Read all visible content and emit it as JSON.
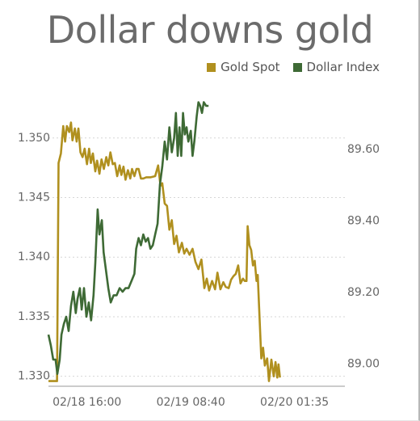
{
  "chart_data": {
    "type": "line",
    "title": "Dollar downs gold",
    "x_ticks": [
      "02/18 16:00",
      "02/19 08:40",
      "02/20 01:35"
    ],
    "y_left": {
      "ticks": [
        "1.330",
        "1.335",
        "1.340",
        "1.345",
        "1.350"
      ],
      "lim": [
        1.3293,
        1.3548
      ]
    },
    "y_right": {
      "ticks": [
        "89.00",
        "89.20",
        "89.40",
        "89.60"
      ],
      "lim": [
        88.94,
        89.79
      ]
    },
    "legend_position": "top-right",
    "grid": "horizontal dashed",
    "series": [
      {
        "name": "Gold Spot",
        "axis": "left",
        "color": "#b0901f",
        "values": [
          [
            0.0,
            1.3296
          ],
          [
            0.029,
            1.3296
          ],
          [
            0.034,
            1.3479
          ],
          [
            0.042,
            1.3487
          ],
          [
            0.05,
            1.351
          ],
          [
            0.056,
            1.3497
          ],
          [
            0.062,
            1.351
          ],
          [
            0.07,
            1.3505
          ],
          [
            0.076,
            1.3513
          ],
          [
            0.081,
            1.3498
          ],
          [
            0.089,
            1.3508
          ],
          [
            0.095,
            1.3497
          ],
          [
            0.101,
            1.3508
          ],
          [
            0.108,
            1.3488
          ],
          [
            0.115,
            1.3484
          ],
          [
            0.122,
            1.3491
          ],
          [
            0.13,
            1.3478
          ],
          [
            0.137,
            1.3491
          ],
          [
            0.143,
            1.3479
          ],
          [
            0.15,
            1.3487
          ],
          [
            0.158,
            1.3472
          ],
          [
            0.164,
            1.3481
          ],
          [
            0.172,
            1.347
          ],
          [
            0.179,
            1.3482
          ],
          [
            0.187,
            1.3474
          ],
          [
            0.195,
            1.3484
          ],
          [
            0.202,
            1.3477
          ],
          [
            0.209,
            1.3488
          ],
          [
            0.217,
            1.3478
          ],
          [
            0.224,
            1.3479
          ],
          [
            0.232,
            1.3468
          ],
          [
            0.24,
            1.3477
          ],
          [
            0.246,
            1.3469
          ],
          [
            0.253,
            1.3476
          ],
          [
            0.26,
            1.3465
          ],
          [
            0.268,
            1.3473
          ],
          [
            0.276,
            1.3466
          ],
          [
            0.282,
            1.3474
          ],
          [
            0.29,
            1.3468
          ],
          [
            0.297,
            1.3474
          ],
          [
            0.304,
            1.3474
          ],
          [
            0.312,
            1.3466
          ],
          [
            0.32,
            1.3466
          ],
          [
            0.33,
            1.3467
          ],
          [
            0.345,
            1.3467
          ],
          [
            0.36,
            1.3468
          ],
          [
            0.37,
            1.3477
          ],
          [
            0.378,
            1.346
          ],
          [
            0.384,
            1.3462
          ],
          [
            0.392,
            1.3445
          ],
          [
            0.4,
            1.3443
          ],
          [
            0.408,
            1.3423
          ],
          [
            0.416,
            1.3431
          ],
          [
            0.424,
            1.3411
          ],
          [
            0.432,
            1.3418
          ],
          [
            0.44,
            1.3404
          ],
          [
            0.45,
            1.3412
          ],
          [
            0.458,
            1.3403
          ],
          [
            0.466,
            1.3407
          ],
          [
            0.476,
            1.3402
          ],
          [
            0.486,
            1.3407
          ],
          [
            0.496,
            1.3396
          ],
          [
            0.506,
            1.339
          ],
          [
            0.516,
            1.3398
          ],
          [
            0.526,
            1.3374
          ],
          [
            0.534,
            1.3382
          ],
          [
            0.542,
            1.3372
          ],
          [
            0.552,
            1.338
          ],
          [
            0.562,
            1.3373
          ],
          [
            0.57,
            1.3387
          ],
          [
            0.58,
            1.3373
          ],
          [
            0.59,
            1.3379
          ],
          [
            0.598,
            1.3375
          ],
          [
            0.608,
            1.3374
          ],
          [
            0.616,
            1.3381
          ],
          [
            0.624,
            1.3384
          ],
          [
            0.632,
            1.3386
          ],
          [
            0.64,
            1.3393
          ],
          [
            0.648,
            1.3378
          ],
          [
            0.656,
            1.3382
          ],
          [
            0.662,
            1.338
          ],
          [
            0.668,
            1.338
          ],
          [
            0.672,
            1.3426
          ],
          [
            0.678,
            1.341
          ],
          [
            0.684,
            1.3406
          ],
          [
            0.69,
            1.3393
          ],
          [
            0.696,
            1.3397
          ],
          [
            0.702,
            1.338
          ],
          [
            0.706,
            1.3385
          ],
          [
            0.712,
            1.335
          ],
          [
            0.718,
            1.3315
          ],
          [
            0.724,
            1.3324
          ],
          [
            0.73,
            1.3309
          ],
          [
            0.738,
            1.3315
          ],
          [
            0.744,
            1.3296
          ],
          [
            0.752,
            1.3314
          ],
          [
            0.76,
            1.33
          ],
          [
            0.766,
            1.3312
          ],
          [
            0.772,
            1.3299
          ],
          [
            0.776,
            1.331
          ],
          [
            0.781,
            1.3299
          ]
        ]
      },
      {
        "name": "Dollar Index",
        "axis": "right",
        "color": "#3e6a35",
        "values": [
          [
            0.0,
            89.08
          ],
          [
            0.008,
            89.05
          ],
          [
            0.016,
            89.01
          ],
          [
            0.024,
            89.01
          ],
          [
            0.03,
            88.97
          ],
          [
            0.038,
            89.01
          ],
          [
            0.044,
            89.08
          ],
          [
            0.052,
            89.11
          ],
          [
            0.06,
            89.13
          ],
          [
            0.068,
            89.09
          ],
          [
            0.076,
            89.16
          ],
          [
            0.084,
            89.2
          ],
          [
            0.092,
            89.14
          ],
          [
            0.098,
            89.18
          ],
          [
            0.106,
            89.21
          ],
          [
            0.112,
            89.15
          ],
          [
            0.12,
            89.21
          ],
          [
            0.128,
            89.13
          ],
          [
            0.136,
            89.17
          ],
          [
            0.144,
            89.12
          ],
          [
            0.152,
            89.19
          ],
          [
            0.158,
            89.28
          ],
          [
            0.166,
            89.43
          ],
          [
            0.172,
            89.36
          ],
          [
            0.18,
            89.4
          ],
          [
            0.186,
            89.31
          ],
          [
            0.194,
            89.26
          ],
          [
            0.202,
            89.21
          ],
          [
            0.21,
            89.17
          ],
          [
            0.22,
            89.19
          ],
          [
            0.23,
            89.19
          ],
          [
            0.24,
            89.21
          ],
          [
            0.25,
            89.2
          ],
          [
            0.26,
            89.21
          ],
          [
            0.27,
            89.21
          ],
          [
            0.28,
            89.23
          ],
          [
            0.29,
            89.25
          ],
          [
            0.296,
            89.32
          ],
          [
            0.304,
            89.35
          ],
          [
            0.312,
            89.33
          ],
          [
            0.32,
            89.36
          ],
          [
            0.328,
            89.34
          ],
          [
            0.336,
            89.35
          ],
          [
            0.344,
            89.32
          ],
          [
            0.352,
            89.33
          ],
          [
            0.36,
            89.36
          ],
          [
            0.368,
            89.39
          ],
          [
            0.376,
            89.5
          ],
          [
            0.384,
            89.55
          ],
          [
            0.392,
            89.62
          ],
          [
            0.4,
            89.57
          ],
          [
            0.408,
            89.66
          ],
          [
            0.416,
            89.59
          ],
          [
            0.424,
            89.63
          ],
          [
            0.43,
            89.7
          ],
          [
            0.436,
            89.58
          ],
          [
            0.442,
            89.66
          ],
          [
            0.448,
            89.58
          ],
          [
            0.454,
            89.7
          ],
          [
            0.46,
            89.64
          ],
          [
            0.466,
            89.66
          ],
          [
            0.472,
            89.62
          ],
          [
            0.48,
            89.65
          ],
          [
            0.486,
            89.58
          ],
          [
            0.492,
            89.62
          ],
          [
            0.5,
            89.69
          ],
          [
            0.506,
            89.73
          ],
          [
            0.512,
            89.72
          ],
          [
            0.518,
            89.7
          ],
          [
            0.524,
            89.73
          ],
          [
            0.532,
            89.72
          ],
          [
            0.54,
            89.72
          ]
        ]
      }
    ]
  },
  "legend": [
    {
      "label": "Gold Spot",
      "color": "#b0901f"
    },
    {
      "label": "Dollar Index",
      "color": "#3e6a35"
    }
  ]
}
